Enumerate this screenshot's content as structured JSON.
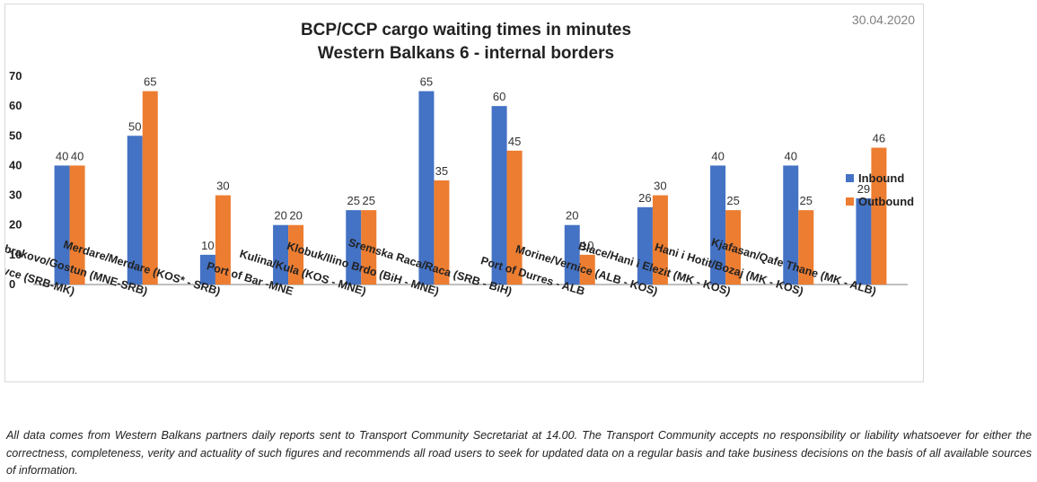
{
  "date": "30.04.2020",
  "colors": {
    "inbound": "#4472C4",
    "outbound": "#ED7D31",
    "axis": "#7f7f7f",
    "frame": "#d9d9d9"
  },
  "chart_data": {
    "type": "bar",
    "title": [
      "BCP/CCP cargo waiting times in minutes",
      "Western Balkans 6 - internal borders"
    ],
    "categories": [
      "Presevo/ Tabanovce (SRB-MK)",
      "Dobrakovo/Gostun (MNE-SRB)",
      "Merdare/Merdare (KOS* - SRB)",
      "Port of Bar -MNE",
      "Kulina/Kula (KOS - MNE)",
      "Klobuk/Ilino Brdo (BiH - MNE)",
      "Sremska Raca/Raca (SRB - BiH)",
      "Port of Durres - ALB",
      "Morine/Vernice (ALB - KOS)",
      "Blace/Hani i Elezit (MK - KOS)",
      "Hani i Hotit/Bozaj (MK - KOS)",
      "Kjafasan/Qafe Thane (MK - ALB)"
    ],
    "series": [
      {
        "name": "Inbound",
        "values": [
          40,
          50,
          10,
          20,
          25,
          65,
          60,
          20,
          26,
          40,
          40,
          29
        ]
      },
      {
        "name": "Outbound",
        "values": [
          40,
          65,
          30,
          20,
          25,
          35,
          45,
          10,
          30,
          25,
          25,
          46
        ]
      }
    ],
    "ylim": [
      0,
      70
    ],
    "yticks": [
      0,
      10,
      20,
      30,
      40,
      50,
      60,
      70
    ],
    "grid": false,
    "legend_position": "right",
    "xlabel": "",
    "ylabel": ""
  },
  "footnote": "All data comes from Western Balkans partners daily reports sent to Transport Community Secretariat at 14.00. The Transport Community accepts no responsibility or liability whatsoever for either the correctness, completeness, verity and actuality of such figures and recommends all road users to seek for updated data on a regular basis and take business decisions on the basis of all available sources of information."
}
